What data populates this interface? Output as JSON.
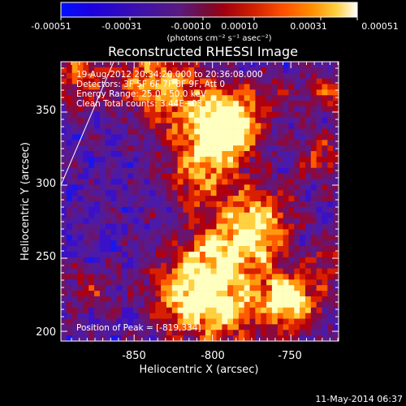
{
  "colorbar": {
    "tick_labels": [
      "-0.00051",
      "-0.00031",
      "-0.00010",
      "0.00010",
      "0.00031",
      "0.00051"
    ],
    "units_label": "(photons cm⁻² s⁻¹ asec⁻²)",
    "colors": [
      "#0000ff",
      "#3a00cc",
      "#5e1a9a",
      "#7a1a55",
      "#a0001a",
      "#d01000",
      "#ff4a00",
      "#ff8c00",
      "#ffd000",
      "#ffffff"
    ]
  },
  "plot": {
    "title": "Reconstructed RHESSI Image",
    "xlabel": "Heliocentric X (arcsec)",
    "ylabel": "Heliocentric Y (arcsec)",
    "x_ticks": [
      "-850",
      "-800",
      "-750"
    ],
    "y_ticks": [
      "350",
      "300",
      "250",
      "200"
    ],
    "xlim": [
      -895,
      -715
    ],
    "ylim": [
      195,
      385
    ]
  },
  "annotations": {
    "time": "19-Aug-2012 20:34:20.000 to 20:36:08.000",
    "detectors": "Detectors: 3F 5F 6F 7F 8F 9F, Att 0",
    "energy": "Energy Range: 25.0 - 50.0 keV",
    "clean": "Clean     Total counts: 3.44E+03",
    "peak": "Position of Peak = [-819,334]"
  },
  "footer": {
    "date": "11-May-2014 06:37"
  }
}
